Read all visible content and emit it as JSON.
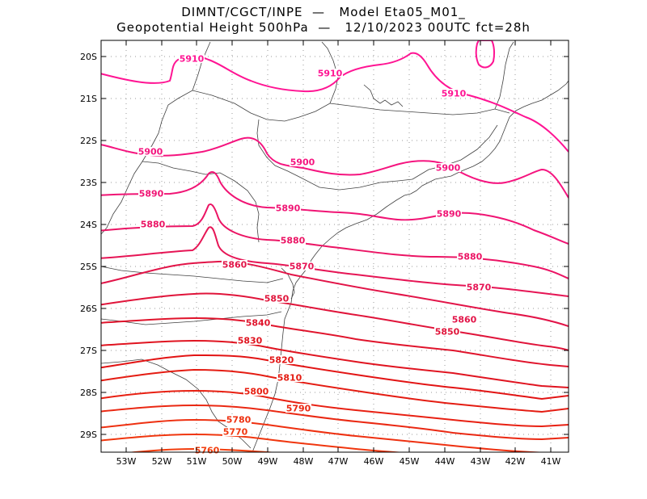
{
  "header": {
    "line1": "DIMNT/CGCT/INPE  —   Model Eta05_M01_",
    "line2": "Geopotential Height 500hPa  —   12/10/2023 00UTC fct=28h"
  },
  "axes": {
    "lat_ticks": [
      "20S",
      "21S",
      "22S",
      "23S",
      "24S",
      "25S",
      "26S",
      "27S",
      "28S",
      "29S"
    ],
    "lon_ticks": [
      "53W",
      "52W",
      "51W",
      "50W",
      "49W",
      "48W",
      "47W",
      "46W",
      "45W",
      "44W",
      "43W",
      "42W",
      "41W"
    ]
  },
  "colors": {
    "frame": "#000000",
    "grid": "#999999",
    "coast": "#404040"
  },
  "contours": [
    {
      "label": "5910",
      "color": "#ff1493"
    },
    {
      "label": "5900",
      "color": "#f5147f"
    },
    {
      "label": "5890",
      "color": "#f01474"
    },
    {
      "label": "5880",
      "color": "#eb1464"
    },
    {
      "label": "5870",
      "color": "#e61555"
    },
    {
      "label": "5860",
      "color": "#e21448"
    },
    {
      "label": "5850",
      "color": "#e0143a"
    },
    {
      "label": "5840",
      "color": "#e0142c"
    },
    {
      "label": "5830",
      "color": "#e01420"
    },
    {
      "label": "5820",
      "color": "#e21414"
    },
    {
      "label": "5810",
      "color": "#e41c12"
    },
    {
      "label": "5800",
      "color": "#e82012"
    },
    {
      "label": "5790",
      "color": "#ea2812"
    },
    {
      "label": "5780",
      "color": "#ee3010"
    },
    {
      "label": "5770",
      "color": "#f0360e"
    },
    {
      "label": "5760",
      "color": "#f23c0c"
    }
  ]
}
